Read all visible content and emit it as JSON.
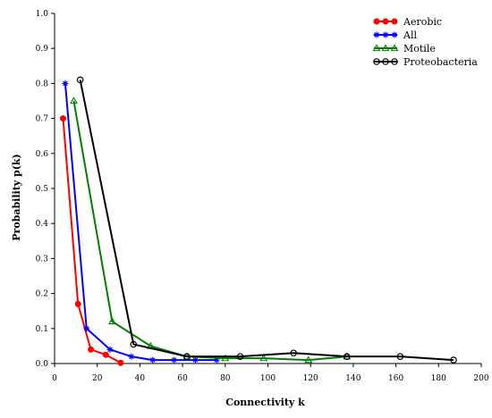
{
  "chart_data": {
    "type": "line",
    "title": "",
    "xlabel": "Connectivity k",
    "ylabel": "Probability p(k)",
    "xlim": [
      0,
      200
    ],
    "ylim": [
      0,
      1.0
    ],
    "xticks": [
      0,
      20,
      40,
      60,
      80,
      100,
      120,
      140,
      160,
      180,
      200
    ],
    "yticks": [
      0.0,
      0.1,
      0.2,
      0.3,
      0.4,
      0.5,
      0.6,
      0.7,
      0.8,
      0.9,
      1.0
    ],
    "yticklabels": [
      "0.0",
      "0.1",
      "0.2",
      "0.3",
      "0.4",
      "0.5",
      "0.6",
      "0.7",
      "0.8",
      "0.9",
      "1.0"
    ],
    "grid": false,
    "legend_position": "top-right",
    "series": [
      {
        "name": "Aerobic",
        "color": "#ff0000",
        "marker": "dot",
        "x": [
          4,
          11,
          17,
          24,
          31
        ],
        "y": [
          0.7,
          0.17,
          0.04,
          0.025,
          0.002
        ]
      },
      {
        "name": "All",
        "color": "#0000ff",
        "marker": "star",
        "x": [
          5,
          15,
          26,
          36,
          46,
          56,
          66,
          76
        ],
        "y": [
          0.8,
          0.1,
          0.04,
          0.02,
          0.01,
          0.01,
          0.01,
          0.01
        ]
      },
      {
        "name": "Motile",
        "color": "#008000",
        "marker": "triangle",
        "x": [
          9,
          27,
          45,
          62,
          80,
          98,
          119,
          137
        ],
        "y": [
          0.75,
          0.12,
          0.05,
          0.02,
          0.015,
          0.015,
          0.01,
          0.02
        ]
      },
      {
        "name": "Proteobacteria",
        "color": "#000000",
        "marker": "circle",
        "x": [
          12,
          37,
          62,
          87,
          112,
          137,
          162,
          187
        ],
        "y": [
          0.81,
          0.055,
          0.02,
          0.02,
          0.03,
          0.02,
          0.02,
          0.01
        ]
      }
    ]
  }
}
